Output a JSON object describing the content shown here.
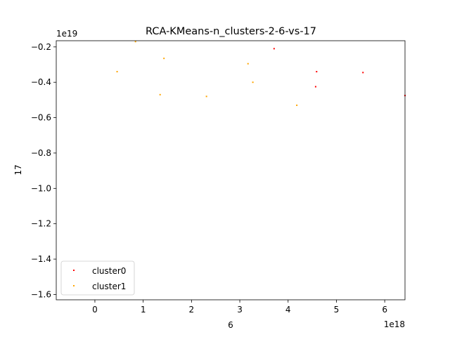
{
  "chart_data": {
    "type": "scatter",
    "title": "RCA-KMeans-n_clusters-2-6-vs-17",
    "xlabel": "6",
    "ylabel": "17",
    "x_offset_text": "1e18",
    "y_offset_text": "1e19",
    "x_scale": 1e+18,
    "y_scale": 1e+19,
    "xlim": [
      -0.8,
      6.42
    ],
    "ylim": [
      -1.63,
      -0.165
    ],
    "x_ticks": [
      0,
      1,
      2,
      3,
      4,
      5,
      6
    ],
    "x_tick_labels": [
      "0",
      "1",
      "2",
      "3",
      "4",
      "5",
      "6"
    ],
    "y_ticks": [
      -0.2,
      -0.4,
      -0.6,
      -0.8,
      -1.0,
      -1.2,
      -1.4,
      -1.6
    ],
    "y_tick_labels": [
      "−0.2",
      "−0.4",
      "−0.6",
      "−0.8",
      "−1.0",
      "−1.2",
      "−1.4",
      "−1.6"
    ],
    "grid": false,
    "legend_position": "lower-left",
    "series": [
      {
        "name": "cluster0",
        "color": "#ff0000",
        "points": [
          {
            "x": 3.71,
            "y": -0.21
          },
          {
            "x": 4.59,
            "y": -0.34
          },
          {
            "x": 5.55,
            "y": -0.345
          },
          {
            "x": 4.57,
            "y": -0.425
          },
          {
            "x": 6.42,
            "y": -0.475
          }
        ]
      },
      {
        "name": "cluster1",
        "color": "#ffa500",
        "points": [
          {
            "x": 0.84,
            "y": -0.17
          },
          {
            "x": 1.43,
            "y": -0.265
          },
          {
            "x": 3.17,
            "y": -0.295
          },
          {
            "x": 0.46,
            "y": -0.34
          },
          {
            "x": 3.27,
            "y": -0.4
          },
          {
            "x": 1.35,
            "y": -0.47
          },
          {
            "x": 2.31,
            "y": -0.48
          },
          {
            "x": 4.18,
            "y": -0.53
          }
        ]
      }
    ]
  }
}
